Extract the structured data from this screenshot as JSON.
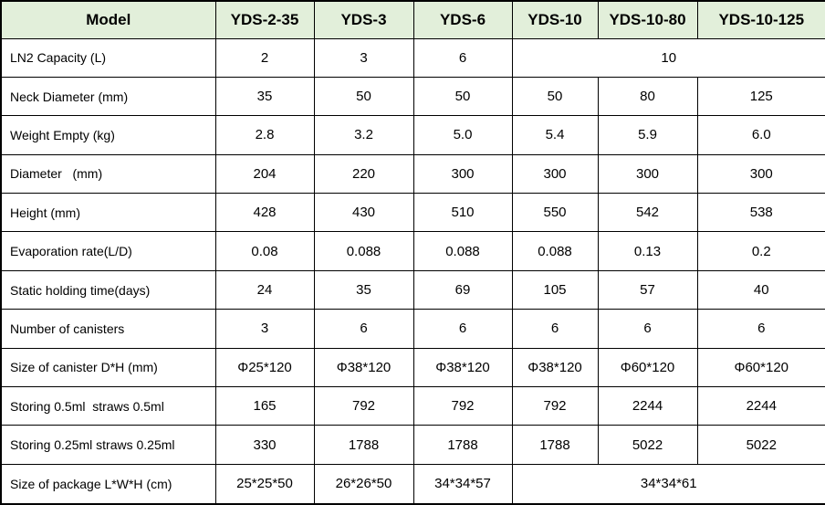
{
  "table": {
    "colors": {
      "header_bg": "#e2efda",
      "border": "#000000",
      "text": "#000000"
    },
    "columns": [
      "Model",
      "YDS-2-35",
      "YDS-3",
      "YDS-6",
      "YDS-10",
      "YDS-10-80",
      "YDS-10-125"
    ],
    "rows": [
      {
        "label": "LN2 Capacity (L)",
        "cells": [
          {
            "t": "2"
          },
          {
            "t": "3"
          },
          {
            "t": "6"
          },
          {
            "t": "10",
            "span": 3
          }
        ]
      },
      {
        "label": "Neck Diameter (mm)",
        "cells": [
          {
            "t": "35"
          },
          {
            "t": "50"
          },
          {
            "t": "50"
          },
          {
            "t": "50"
          },
          {
            "t": "80"
          },
          {
            "t": "125"
          }
        ]
      },
      {
        "label": "Weight Empty (kg)",
        "cells": [
          {
            "t": "2.8"
          },
          {
            "t": "3.2"
          },
          {
            "t": "5.0"
          },
          {
            "t": "5.4"
          },
          {
            "t": "5.9"
          },
          {
            "t": "6.0"
          }
        ]
      },
      {
        "label": "Diameter   (mm)",
        "cells": [
          {
            "t": "204"
          },
          {
            "t": "220"
          },
          {
            "t": "300"
          },
          {
            "t": "300"
          },
          {
            "t": "300"
          },
          {
            "t": "300"
          }
        ]
      },
      {
        "label": "Height (mm)",
        "cells": [
          {
            "t": "428"
          },
          {
            "t": "430"
          },
          {
            "t": "510"
          },
          {
            "t": "550"
          },
          {
            "t": "542"
          },
          {
            "t": "538"
          }
        ]
      },
      {
        "label": "Evaporation rate(L/D)",
        "cells": [
          {
            "t": "0.08"
          },
          {
            "t": "0.088"
          },
          {
            "t": "0.088"
          },
          {
            "t": "0.088"
          },
          {
            "t": "0.13"
          },
          {
            "t": "0.2"
          }
        ]
      },
      {
        "label": "Static holding time(days)",
        "cells": [
          {
            "t": "24"
          },
          {
            "t": "35"
          },
          {
            "t": "69"
          },
          {
            "t": "105"
          },
          {
            "t": "57"
          },
          {
            "t": "40"
          }
        ]
      },
      {
        "label": "Number of canisters",
        "cells": [
          {
            "t": "3"
          },
          {
            "t": "6"
          },
          {
            "t": "6"
          },
          {
            "t": "6"
          },
          {
            "t": "6"
          },
          {
            "t": "6"
          }
        ]
      },
      {
        "label": "Size of canister D*H (mm)",
        "cells": [
          {
            "t": "Φ25*120"
          },
          {
            "t": "Φ38*120"
          },
          {
            "t": "Φ38*120"
          },
          {
            "t": "Φ38*120"
          },
          {
            "t": "Φ60*120"
          },
          {
            "t": "Φ60*120"
          }
        ]
      },
      {
        "label": "Storing 0.5ml  straws 0.5ml",
        "cells": [
          {
            "t": "165"
          },
          {
            "t": "792"
          },
          {
            "t": "792"
          },
          {
            "t": "792"
          },
          {
            "t": "2244"
          },
          {
            "t": "2244"
          }
        ]
      },
      {
        "label": "Storing 0.25ml straws 0.25ml",
        "cells": [
          {
            "t": "330"
          },
          {
            "t": "1788"
          },
          {
            "t": "1788"
          },
          {
            "t": "1788"
          },
          {
            "t": "5022"
          },
          {
            "t": "5022"
          }
        ]
      },
      {
        "label": "Size of package L*W*H  (cm)",
        "cells": [
          {
            "t": "25*25*50"
          },
          {
            "t": "26*26*50"
          },
          {
            "t": "34*34*57"
          },
          {
            "t": "34*34*61",
            "span": 3
          }
        ]
      }
    ]
  }
}
